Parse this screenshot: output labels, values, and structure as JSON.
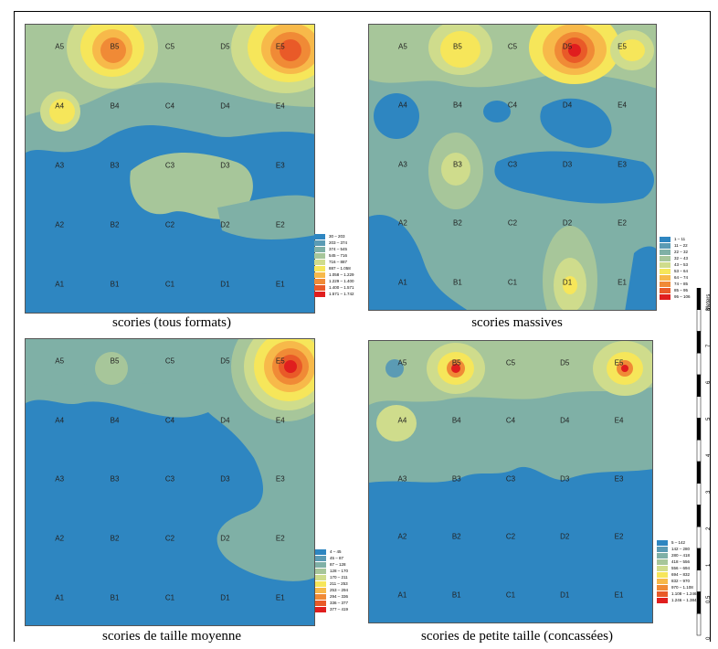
{
  "panels": [
    {
      "caption": "scories (tous formats)",
      "legend": [
        "30 – 203",
        "203 – 374",
        "374 – 545",
        "545 – 716",
        "716 – 887",
        "887 – 1.058",
        "1.058 – 1.229",
        "1.229 – 1.400",
        "1.400 – 1.571",
        "1.571 – 1.742"
      ]
    },
    {
      "caption": "scories massives",
      "legend": [
        "1 – 11",
        "11 – 22",
        "22 – 32",
        "32 – 43",
        "43 – 53",
        "53 – 64",
        "64 – 74",
        "74 – 85",
        "85 – 95",
        "95 – 106"
      ]
    },
    {
      "caption": "scories de taille moyenne",
      "legend": [
        "4 – 45",
        "45 – 87",
        "87 – 128",
        "128 – 170",
        "170 – 211",
        "211 – 253",
        "253 – 294",
        "294 – 336",
        "336 – 377",
        "377 – 419"
      ]
    },
    {
      "caption": "scories de petite taille (concassées)",
      "legend": [
        "5 – 142",
        "142 – 280",
        "280 – 418",
        "418 – 556",
        "556 – 694",
        "694 – 832",
        "832 – 970",
        "970 – 1.108",
        "1.108 – 1.246",
        "1.246 – 1.384"
      ]
    }
  ],
  "grid_rows": [
    [
      "A5",
      "B5",
      "C5",
      "D5",
      "E5"
    ],
    [
      "A4",
      "B4",
      "C4",
      "D4",
      "E4"
    ],
    [
      "A3",
      "B3",
      "C3",
      "D3",
      "E3"
    ],
    [
      "A2",
      "B2",
      "C2",
      "D2",
      "E2"
    ],
    [
      "A1",
      "B1",
      "C1",
      "D1",
      "E1"
    ]
  ],
  "legend_colors": [
    "#2e86c1",
    "#5b9bb4",
    "#7fb0a6",
    "#a7c69a",
    "#cfdc8c",
    "#f6e65a",
    "#f7b94a",
    "#f08a36",
    "#e95a28",
    "#e01e1e"
  ],
  "scale": {
    "unit": "Meters",
    "ticks": [
      "0",
      "0,5",
      "1",
      "2",
      "3",
      "4",
      "5",
      "6",
      "7",
      "8"
    ]
  }
}
